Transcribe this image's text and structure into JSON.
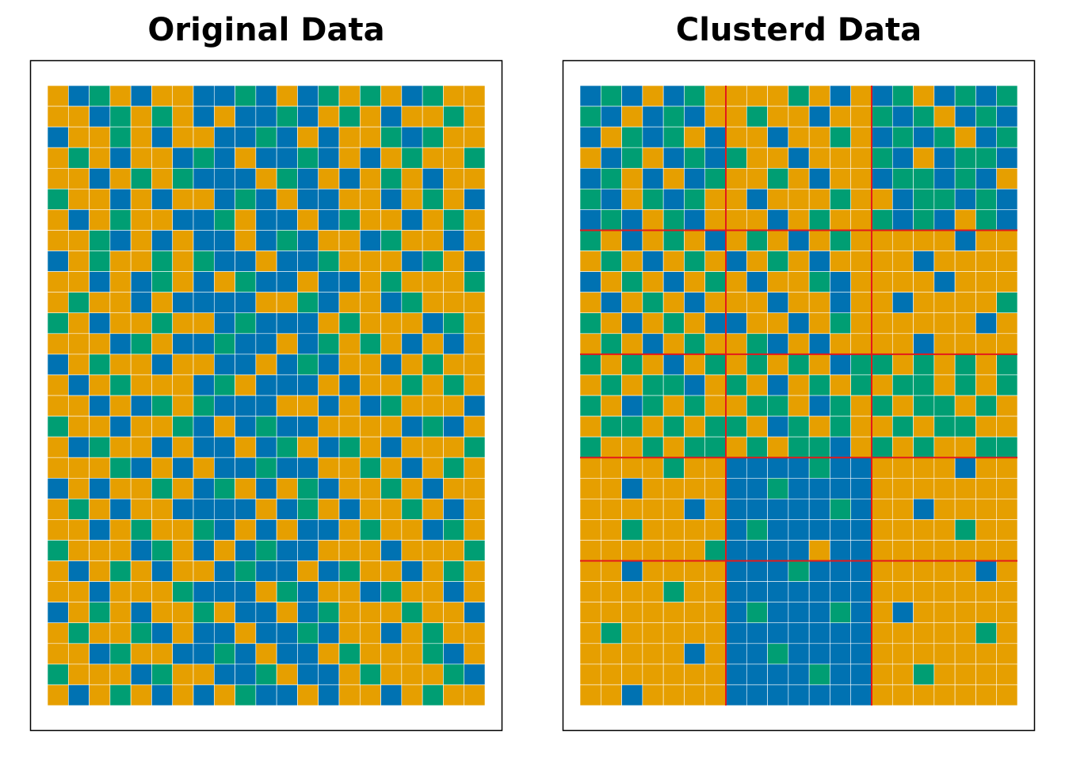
{
  "chart_data": [
    {
      "type": "heatmap",
      "title": "Original Data",
      "colors": [
        "#0072B2",
        "#009E73",
        "#E69F00"
      ],
      "values": [
        [
          2,
          0,
          1,
          2,
          0,
          2,
          2,
          0,
          0,
          1,
          0,
          2,
          0,
          1,
          2,
          1,
          2,
          0,
          1,
          2,
          2
        ],
        [
          2,
          2,
          0,
          1,
          2,
          1,
          2,
          0,
          2,
          0,
          0,
          1,
          0,
          2,
          1,
          2,
          0,
          2,
          2,
          1,
          2
        ],
        [
          0,
          2,
          2,
          1,
          2,
          0,
          2,
          2,
          0,
          0,
          1,
          0,
          2,
          0,
          2,
          2,
          1,
          0,
          1,
          2,
          2
        ],
        [
          2,
          1,
          2,
          0,
          2,
          2,
          0,
          1,
          0,
          2,
          0,
          0,
          1,
          0,
          2,
          0,
          2,
          1,
          2,
          2,
          1
        ],
        [
          2,
          2,
          0,
          2,
          1,
          2,
          1,
          0,
          0,
          0,
          2,
          1,
          0,
          2,
          0,
          2,
          1,
          2,
          0,
          2,
          2
        ],
        [
          1,
          2,
          2,
          0,
          2,
          0,
          2,
          2,
          0,
          1,
          0,
          2,
          0,
          0,
          2,
          2,
          0,
          2,
          1,
          2,
          0
        ],
        [
          2,
          0,
          2,
          1,
          2,
          2,
          0,
          0,
          1,
          2,
          0,
          0,
          2,
          0,
          1,
          2,
          2,
          0,
          2,
          1,
          2
        ],
        [
          2,
          2,
          1,
          0,
          2,
          0,
          2,
          0,
          0,
          2,
          0,
          1,
          0,
          2,
          2,
          0,
          1,
          2,
          2,
          0,
          2
        ],
        [
          0,
          2,
          1,
          2,
          2,
          1,
          2,
          1,
          0,
          0,
          2,
          0,
          0,
          1,
          2,
          2,
          2,
          0,
          1,
          2,
          0
        ],
        [
          2,
          2,
          0,
          2,
          0,
          1,
          2,
          0,
          2,
          1,
          0,
          0,
          2,
          0,
          0,
          2,
          1,
          2,
          2,
          2,
          1
        ],
        [
          2,
          1,
          2,
          2,
          0,
          2,
          0,
          0,
          0,
          0,
          2,
          2,
          1,
          0,
          2,
          2,
          0,
          1,
          2,
          2,
          2
        ],
        [
          1,
          2,
          0,
          2,
          2,
          1,
          2,
          2,
          0,
          1,
          0,
          0,
          0,
          2,
          1,
          2,
          2,
          2,
          0,
          1,
          2
        ],
        [
          2,
          2,
          2,
          0,
          1,
          2,
          0,
          0,
          1,
          0,
          0,
          2,
          0,
          1,
          2,
          1,
          2,
          0,
          2,
          0,
          2
        ],
        [
          0,
          2,
          1,
          2,
          2,
          0,
          2,
          2,
          0,
          0,
          2,
          0,
          1,
          0,
          2,
          2,
          0,
          2,
          1,
          2,
          2
        ],
        [
          2,
          0,
          2,
          1,
          2,
          2,
          2,
          0,
          1,
          2,
          0,
          0,
          0,
          2,
          0,
          2,
          2,
          1,
          2,
          1,
          2
        ],
        [
          2,
          2,
          0,
          2,
          0,
          1,
          2,
          1,
          0,
          0,
          0,
          2,
          2,
          0,
          2,
          0,
          1,
          2,
          2,
          2,
          0
        ],
        [
          1,
          2,
          2,
          0,
          2,
          2,
          1,
          0,
          2,
          0,
          1,
          0,
          0,
          2,
          2,
          2,
          2,
          0,
          1,
          0,
          2
        ],
        [
          2,
          0,
          1,
          2,
          2,
          0,
          2,
          0,
          0,
          2,
          0,
          1,
          2,
          0,
          1,
          2,
          0,
          2,
          2,
          2,
          1
        ],
        [
          2,
          2,
          2,
          1,
          0,
          2,
          0,
          2,
          0,
          0,
          1,
          0,
          0,
          2,
          2,
          1,
          2,
          0,
          2,
          1,
          2
        ],
        [
          0,
          2,
          0,
          2,
          2,
          1,
          2,
          0,
          1,
          2,
          0,
          2,
          1,
          0,
          2,
          2,
          1,
          2,
          0,
          2,
          2
        ],
        [
          2,
          1,
          2,
          0,
          2,
          2,
          0,
          0,
          0,
          0,
          2,
          0,
          1,
          2,
          0,
          2,
          2,
          1,
          2,
          0,
          2
        ],
        [
          2,
          2,
          0,
          2,
          1,
          2,
          2,
          1,
          0,
          2,
          0,
          2,
          0,
          0,
          2,
          1,
          2,
          2,
          0,
          1,
          2
        ],
        [
          1,
          2,
          2,
          2,
          0,
          1,
          2,
          0,
          2,
          0,
          1,
          0,
          0,
          2,
          2,
          2,
          0,
          2,
          2,
          2,
          1
        ],
        [
          2,
          0,
          2,
          1,
          2,
          0,
          2,
          2,
          0,
          1,
          0,
          0,
          2,
          0,
          1,
          2,
          2,
          0,
          2,
          1,
          2
        ],
        [
          2,
          2,
          0,
          2,
          2,
          2,
          1,
          0,
          0,
          0,
          2,
          1,
          0,
          2,
          2,
          0,
          1,
          2,
          2,
          0,
          2
        ],
        [
          0,
          2,
          1,
          2,
          0,
          2,
          2,
          1,
          2,
          0,
          0,
          2,
          0,
          1,
          2,
          2,
          2,
          1,
          2,
          2,
          0
        ],
        [
          2,
          1,
          2,
          2,
          1,
          0,
          2,
          0,
          0,
          2,
          0,
          0,
          1,
          0,
          2,
          2,
          0,
          2,
          1,
          2,
          2
        ],
        [
          2,
          2,
          0,
          1,
          2,
          2,
          0,
          0,
          1,
          0,
          2,
          0,
          0,
          2,
          1,
          2,
          2,
          2,
          1,
          0,
          2
        ],
        [
          1,
          2,
          2,
          2,
          0,
          1,
          2,
          2,
          0,
          0,
          1,
          2,
          0,
          0,
          2,
          1,
          2,
          2,
          2,
          1,
          0
        ],
        [
          2,
          0,
          2,
          1,
          2,
          0,
          2,
          0,
          2,
          1,
          0,
          0,
          2,
          0,
          2,
          2,
          0,
          2,
          1,
          2,
          2
        ]
      ]
    },
    {
      "type": "heatmap",
      "title": "Clusterd Data",
      "colors": [
        "#0072B2",
        "#009E73",
        "#E69F00"
      ],
      "break_color": "#e3191c",
      "row_breaks": [
        7,
        13,
        18,
        23
      ],
      "col_breaks": [
        7,
        14
      ],
      "values": [
        [
          0,
          1,
          0,
          2,
          0,
          1,
          2,
          2,
          2,
          2,
          1,
          2,
          0,
          2,
          0,
          1,
          2,
          0,
          1,
          0,
          1
        ],
        [
          1,
          0,
          2,
          0,
          1,
          0,
          2,
          2,
          1,
          2,
          2,
          0,
          2,
          2,
          1,
          0,
          1,
          2,
          0,
          1,
          0
        ],
        [
          0,
          2,
          1,
          0,
          1,
          2,
          0,
          2,
          2,
          0,
          2,
          2,
          1,
          2,
          0,
          1,
          0,
          1,
          2,
          0,
          1
        ],
        [
          2,
          0,
          1,
          2,
          0,
          1,
          0,
          1,
          2,
          2,
          0,
          2,
          2,
          2,
          1,
          0,
          2,
          0,
          1,
          1,
          0
        ],
        [
          0,
          1,
          2,
          0,
          2,
          0,
          1,
          2,
          2,
          1,
          2,
          0,
          2,
          2,
          0,
          1,
          1,
          0,
          1,
          0,
          2
        ],
        [
          1,
          0,
          2,
          1,
          0,
          1,
          2,
          2,
          0,
          2,
          2,
          2,
          1,
          2,
          2,
          0,
          1,
          1,
          0,
          1,
          0
        ],
        [
          0,
          1,
          0,
          2,
          1,
          0,
          2,
          2,
          2,
          0,
          2,
          1,
          2,
          2,
          1,
          0,
          1,
          0,
          2,
          1,
          0
        ],
        [
          1,
          2,
          0,
          2,
          1,
          2,
          0,
          2,
          1,
          2,
          0,
          2,
          1,
          2,
          2,
          2,
          2,
          2,
          0,
          2,
          2
        ],
        [
          2,
          1,
          2,
          0,
          2,
          1,
          2,
          0,
          2,
          1,
          2,
          0,
          2,
          2,
          2,
          2,
          0,
          2,
          2,
          2,
          2
        ],
        [
          0,
          2,
          1,
          2,
          0,
          2,
          1,
          2,
          0,
          2,
          2,
          1,
          0,
          2,
          2,
          2,
          2,
          0,
          2,
          2,
          2
        ],
        [
          2,
          0,
          2,
          1,
          2,
          0,
          2,
          2,
          2,
          0,
          2,
          2,
          0,
          2,
          2,
          0,
          2,
          2,
          2,
          2,
          1
        ],
        [
          1,
          2,
          0,
          2,
          1,
          2,
          0,
          0,
          2,
          2,
          0,
          2,
          1,
          2,
          2,
          2,
          2,
          2,
          2,
          0,
          2
        ],
        [
          2,
          1,
          2,
          0,
          2,
          1,
          2,
          2,
          1,
          0,
          2,
          0,
          2,
          2,
          2,
          2,
          0,
          2,
          2,
          2,
          2
        ],
        [
          1,
          2,
          1,
          2,
          0,
          2,
          1,
          2,
          1,
          2,
          1,
          2,
          0,
          1,
          1,
          2,
          1,
          2,
          1,
          2,
          1
        ],
        [
          2,
          1,
          2,
          1,
          1,
          0,
          2,
          1,
          2,
          0,
          2,
          1,
          2,
          1,
          2,
          1,
          1,
          2,
          1,
          2,
          1
        ],
        [
          1,
          2,
          0,
          1,
          2,
          1,
          2,
          2,
          1,
          1,
          2,
          0,
          1,
          2,
          1,
          2,
          1,
          1,
          2,
          1,
          2
        ],
        [
          2,
          1,
          1,
          2,
          1,
          2,
          1,
          1,
          2,
          0,
          1,
          2,
          1,
          2,
          2,
          1,
          2,
          1,
          1,
          2,
          2
        ],
        [
          1,
          2,
          2,
          1,
          2,
          1,
          1,
          2,
          1,
          2,
          1,
          1,
          0,
          2,
          1,
          2,
          1,
          2,
          2,
          1,
          1
        ],
        [
          2,
          2,
          2,
          2,
          1,
          2,
          2,
          0,
          0,
          0,
          0,
          1,
          0,
          0,
          2,
          2,
          2,
          2,
          0,
          2,
          2
        ],
        [
          2,
          2,
          0,
          2,
          2,
          2,
          2,
          0,
          0,
          1,
          0,
          0,
          0,
          0,
          2,
          2,
          2,
          2,
          2,
          2,
          2
        ],
        [
          2,
          2,
          2,
          2,
          2,
          0,
          2,
          0,
          0,
          0,
          0,
          0,
          1,
          0,
          2,
          2,
          0,
          2,
          2,
          2,
          2
        ],
        [
          2,
          2,
          1,
          2,
          2,
          2,
          2,
          0,
          1,
          0,
          0,
          0,
          0,
          0,
          2,
          2,
          2,
          2,
          1,
          2,
          2
        ],
        [
          2,
          2,
          2,
          2,
          2,
          2,
          1,
          0,
          0,
          0,
          0,
          2,
          0,
          0,
          2,
          2,
          2,
          2,
          2,
          2,
          2
        ],
        [
          2,
          2,
          0,
          2,
          2,
          2,
          2,
          0,
          0,
          0,
          1,
          0,
          0,
          0,
          2,
          2,
          2,
          2,
          2,
          0,
          2
        ],
        [
          2,
          2,
          2,
          2,
          1,
          2,
          2,
          0,
          0,
          0,
          0,
          0,
          0,
          0,
          2,
          2,
          2,
          2,
          2,
          2,
          2
        ],
        [
          2,
          2,
          2,
          2,
          2,
          2,
          2,
          0,
          1,
          0,
          0,
          0,
          1,
          0,
          2,
          0,
          2,
          2,
          2,
          2,
          2
        ],
        [
          2,
          1,
          2,
          2,
          2,
          2,
          2,
          0,
          0,
          0,
          0,
          0,
          0,
          0,
          2,
          2,
          2,
          2,
          2,
          1,
          2
        ],
        [
          2,
          2,
          2,
          2,
          2,
          0,
          2,
          0,
          0,
          1,
          0,
          0,
          0,
          0,
          2,
          2,
          2,
          2,
          2,
          2,
          2
        ],
        [
          2,
          2,
          2,
          2,
          2,
          2,
          2,
          0,
          0,
          0,
          0,
          1,
          0,
          0,
          2,
          2,
          1,
          2,
          2,
          2,
          2
        ],
        [
          2,
          2,
          0,
          2,
          2,
          2,
          2,
          0,
          0,
          0,
          0,
          0,
          0,
          0,
          2,
          2,
          2,
          2,
          2,
          2,
          2
        ]
      ]
    }
  ]
}
